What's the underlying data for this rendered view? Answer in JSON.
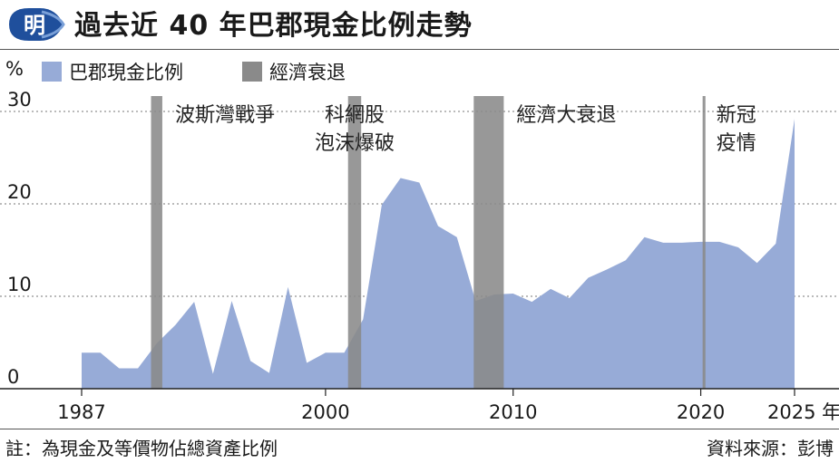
{
  "header": {
    "logo_char": "明",
    "title": "過去近 40 年巴郡現金比例走勢"
  },
  "legend": {
    "unit": "%",
    "items": [
      {
        "label": "巴郡現金比例",
        "color": "#97abd7"
      },
      {
        "label": "經濟衰退",
        "color": "#8a8a8a"
      }
    ]
  },
  "chart_data": {
    "type": "area",
    "title": "過去近 40 年巴郡現金比例走勢",
    "ylabel": "%",
    "xlabel": "",
    "ylim": [
      0,
      30
    ],
    "xlim": [
      1987,
      2025
    ],
    "grid": true,
    "y_ticks": [
      {
        "value": 0,
        "label": "0"
      },
      {
        "value": 10,
        "label": "10"
      },
      {
        "value": 20,
        "label": "20"
      },
      {
        "value": 30,
        "label": "30"
      }
    ],
    "x_ticks": [
      {
        "value": 1987,
        "label": "1987"
      },
      {
        "value": 2000,
        "label": "2000"
      },
      {
        "value": 2010,
        "label": "2010"
      },
      {
        "value": 2020,
        "label": "2020"
      },
      {
        "value": 2025,
        "label": "2025 年"
      }
    ],
    "series": [
      {
        "name": "巴郡現金比例",
        "color": "#97abd7",
        "x": [
          1987,
          1988,
          1989,
          1990,
          1991,
          1992,
          1993,
          1994,
          1995,
          1996,
          1997,
          1998,
          1999,
          2000,
          2001,
          2002,
          2003,
          2004,
          2005,
          2006,
          2007,
          2008,
          2009,
          2010,
          2011,
          2012,
          2013,
          2014,
          2015,
          2016,
          2017,
          2018,
          2019,
          2020,
          2021,
          2022,
          2023,
          2024,
          2025
        ],
        "y": [
          3.9,
          3.9,
          2.2,
          2.2,
          4.9,
          6.9,
          9.4,
          1.6,
          9.5,
          3.0,
          1.7,
          11.0,
          2.8,
          3.9,
          3.9,
          7.5,
          19.9,
          22.8,
          22.3,
          17.6,
          16.4,
          9.5,
          10.2,
          10.3,
          9.4,
          10.8,
          9.8,
          12.0,
          12.9,
          13.9,
          16.4,
          15.8,
          15.8,
          15.9,
          15.9,
          15.3,
          13.6,
          15.7,
          29.2
        ]
      }
    ],
    "shaded_periods": [
      {
        "name": "經濟衰退",
        "label": "波斯灣戰爭",
        "x_start": 1990.7,
        "x_end": 1991.3,
        "color": "#8a8a8a"
      },
      {
        "name": "經濟衰退",
        "label": "科網股\n泡沫爆破",
        "x_start": 2001.2,
        "x_end": 2001.9,
        "color": "#8a8a8a"
      },
      {
        "name": "經濟衰退",
        "label": "經濟大衰退",
        "x_start": 2007.9,
        "x_end": 2009.5,
        "color": "#8a8a8a"
      },
      {
        "name": "經濟衰退",
        "label": "新冠\n疫情",
        "x_start": 2020.1,
        "x_end": 2020.25,
        "color": "#8a8a8a"
      }
    ]
  },
  "footer": {
    "note": "註：為現金及等價物佔總資產比例",
    "source": "資料來源：彭博"
  }
}
